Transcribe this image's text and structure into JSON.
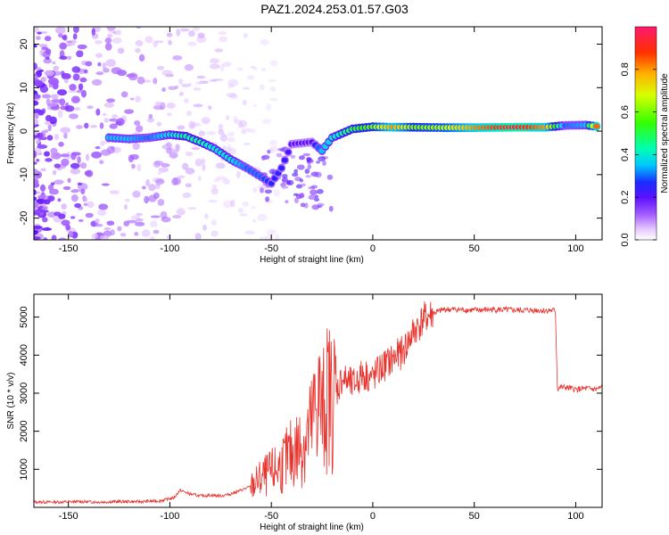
{
  "title": "PAZ1.2024.253.01.57.G03",
  "colors": {
    "snr_line": "#e8322c",
    "axis": "#000000",
    "background": "#ffffff"
  },
  "chart_data": [
    {
      "type": "heatmap",
      "xlabel": "Height of straight line (km)",
      "ylabel": "Frequency (Hz)",
      "xlim": [
        -167,
        113
      ],
      "ylim": [
        -25,
        24
      ],
      "xticks": [
        -150,
        -100,
        -50,
        0,
        50,
        100
      ],
      "yticks": [
        -20,
        -10,
        0,
        10,
        20
      ],
      "xtick_labels": [
        "-150",
        "-100",
        "-50",
        "0",
        "50",
        "100"
      ],
      "ytick_labels": [
        "-20",
        "-10",
        "0",
        "10",
        "20"
      ],
      "colorbar": {
        "label": "Normalized spectral amplitude",
        "ticks": [
          0.0,
          0.2,
          0.4,
          0.6,
          0.8
        ],
        "tick_labels": [
          "0.0",
          "0.2",
          "0.4",
          "0.6",
          "0.8"
        ],
        "range": [
          0,
          1
        ]
      },
      "ridge": [
        {
          "x": -130,
          "y": -1.5,
          "amp": 0.35
        },
        {
          "x": -120,
          "y": -1.8,
          "amp": 0.35
        },
        {
          "x": -110,
          "y": -1.5,
          "amp": 0.3
        },
        {
          "x": -100,
          "y": -0.8,
          "amp": 0.4
        },
        {
          "x": -92,
          "y": -1.2,
          "amp": 0.45
        },
        {
          "x": -85,
          "y": -2.5,
          "amp": 0.45
        },
        {
          "x": -78,
          "y": -4.0,
          "amp": 0.4
        },
        {
          "x": -70,
          "y": -6.5,
          "amp": 0.4
        },
        {
          "x": -62,
          "y": -8.5,
          "amp": 0.3
        },
        {
          "x": -55,
          "y": -10.5,
          "amp": 0.3
        },
        {
          "x": -50,
          "y": -12.0,
          "amp": 0.25
        },
        {
          "x": -45,
          "y": -8.5,
          "amp": 0.25
        },
        {
          "x": -40,
          "y": -3.0,
          "amp": 0.2
        },
        {
          "x": -30,
          "y": -2.5,
          "amp": 0.2
        },
        {
          "x": -25,
          "y": -4.5,
          "amp": 0.35
        },
        {
          "x": -20,
          "y": -1.5,
          "amp": 0.4
        },
        {
          "x": -10,
          "y": 0.5,
          "amp": 0.5
        },
        {
          "x": 0,
          "y": 1.0,
          "amp": 0.6
        },
        {
          "x": 10,
          "y": 0.9,
          "amp": 0.8
        },
        {
          "x": 20,
          "y": 0.9,
          "amp": 0.6
        },
        {
          "x": 35,
          "y": 0.8,
          "amp": 0.65
        },
        {
          "x": 50,
          "y": 0.8,
          "amp": 0.8
        },
        {
          "x": 70,
          "y": 0.9,
          "amp": 0.95
        },
        {
          "x": 85,
          "y": 0.9,
          "amp": 0.8
        },
        {
          "x": 95,
          "y": 1.3,
          "amp": 0.3
        },
        {
          "x": 105,
          "y": 1.4,
          "amp": 0.35
        },
        {
          "x": 112,
          "y": 1.0,
          "amp": 1.0
        }
      ]
    },
    {
      "type": "line",
      "xlabel": "Height of straight line (km)",
      "ylabel": "SNR (10 * v/v)",
      "xlim": [
        -167,
        113
      ],
      "ylim": [
        0,
        5600
      ],
      "xticks": [
        -150,
        -100,
        -50,
        0,
        50,
        100
      ],
      "yticks": [
        1000,
        2000,
        3000,
        4000,
        5000
      ],
      "xtick_labels": [
        "-150",
        "-100",
        "-50",
        "0",
        "50",
        "100"
      ],
      "ytick_labels": [
        "1000",
        "2000",
        "3000",
        "4000",
        "5000"
      ],
      "series": [
        {
          "x": [
            -167,
            -155,
            -145,
            -135,
            -125,
            -115,
            -105,
            -98,
            -95,
            -90,
            -85,
            -80,
            -75,
            -70,
            -65,
            -60,
            -55,
            -50,
            -45,
            -40,
            -35,
            -30,
            -27,
            -25,
            -22,
            -20,
            -15,
            -10,
            -5,
            0,
            5,
            10,
            15,
            20,
            25,
            30,
            35,
            40,
            50,
            60,
            70,
            80,
            85,
            90,
            91,
            92,
            95,
            100,
            105,
            110,
            113
          ],
          "values": [
            140,
            140,
            150,
            140,
            150,
            150,
            170,
            250,
            450,
            350,
            300,
            320,
            300,
            350,
            450,
            550,
            750,
            900,
            1100,
            1400,
            1650,
            2100,
            3000,
            2400,
            3000,
            2800,
            3400,
            3200,
            3500,
            3400,
            3700,
            3900,
            4100,
            4600,
            4950,
            5100,
            5200,
            5200,
            5180,
            5200,
            5180,
            5180,
            5170,
            5170,
            3100,
            3150,
            3150,
            3100,
            3120,
            3100,
            3150
          ]
        }
      ]
    }
  ]
}
